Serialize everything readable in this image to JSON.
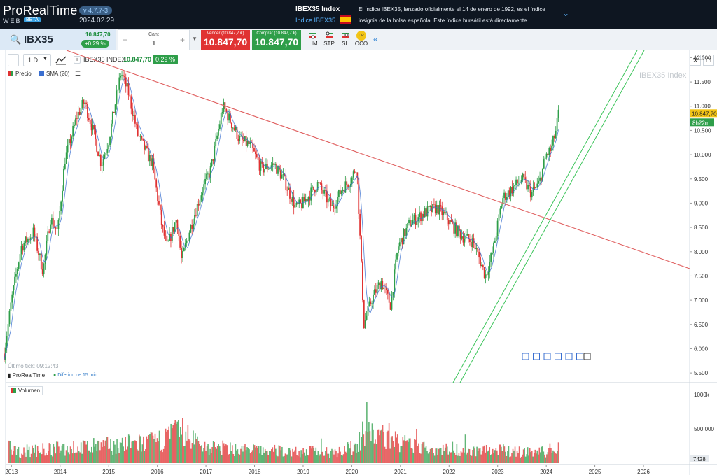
{
  "header": {
    "app_name": "ProRealTime",
    "app_sub": "WEB",
    "beta": "BETA",
    "version": "v 4.7.7-3",
    "date": "2024.02.29",
    "index_title": "IBEX35 Index",
    "index_sub": "Índice IBEX35",
    "description": "El Índice IBEX35, lanzado oficialmente el 14 de enero de 1992, es el índice insignia de la bolsa española. Este índice bursátil está directamente..."
  },
  "trade": {
    "symbol": "IBX35",
    "price": "10.847,70",
    "change": "+0,29 %",
    "qty_label": "Cant",
    "qty_value": "1",
    "qty_minus": "−",
    "qty_plus": "+",
    "sell_label": "Vender (10.847,7 €)",
    "sell_value": "10.847,70",
    "buy_label": "Comprar (10.847,7 €)",
    "buy_value": "10.847,70",
    "order_types": [
      "LIM",
      "STP",
      "SL",
      "OCO"
    ],
    "oco_badge": "OR"
  },
  "toolbar": {
    "timeframe": "1 D",
    "instrument": "IBEX35 INDEX",
    "inst_price": "10.847,70",
    "inst_change": "0.29 %"
  },
  "legend": {
    "price": "Precio",
    "sma": "SMA (20)",
    "volume": "Volumen"
  },
  "watermark": "IBEX35 Index",
  "footer": {
    "last_tick": "Último tick: 09:12:43",
    "brand": "ProRealTime",
    "delay": "Diferido de 15 min"
  },
  "chart_data": {
    "type": "candlestick",
    "x_axis": [
      "2013",
      "2014",
      "2015",
      "2016",
      "2017",
      "2018",
      "2019",
      "2020",
      "2021",
      "2022",
      "2023",
      "2024",
      "2025",
      "2026"
    ],
    "y_ticks": [
      "12.000",
      "11.500",
      "11.000",
      "10.500",
      "10.000",
      "9.500",
      "9.000",
      "8.500",
      "8.000",
      "7.500",
      "7.000",
      "6.500",
      "6.000",
      "5.500"
    ],
    "ylim": [
      5300,
      12150
    ],
    "last_price_label": "10.847,70",
    "countdown_label": "8h22m",
    "volume_ticks": [
      "1000k",
      "500.000"
    ],
    "volume_last": "7428",
    "price_path": [
      [
        2012.85,
        5900
      ],
      [
        2013.0,
        7000
      ],
      [
        2013.2,
        8100
      ],
      [
        2013.45,
        8400
      ],
      [
        2013.65,
        7600
      ],
      [
        2013.8,
        8700
      ],
      [
        2013.95,
        8400
      ],
      [
        2014.1,
        9900
      ],
      [
        2014.35,
        10800
      ],
      [
        2014.5,
        11100
      ],
      [
        2014.65,
        10600
      ],
      [
        2014.85,
        9800
      ],
      [
        2015.0,
        10300
      ],
      [
        2015.25,
        11700
      ],
      [
        2015.4,
        11300
      ],
      [
        2015.6,
        10400
      ],
      [
        2015.8,
        10000
      ],
      [
        2015.9,
        9800
      ],
      [
        2016.1,
        8500
      ],
      [
        2016.2,
        8100
      ],
      [
        2016.4,
        8700
      ],
      [
        2016.5,
        7800
      ],
      [
        2016.65,
        8400
      ],
      [
        2016.9,
        9200
      ],
      [
        2017.1,
        9700
      ],
      [
        2017.35,
        11000
      ],
      [
        2017.5,
        10700
      ],
      [
        2017.7,
        10300
      ],
      [
        2017.9,
        10200
      ],
      [
        2018.15,
        9700
      ],
      [
        2018.4,
        9800
      ],
      [
        2018.6,
        9500
      ],
      [
        2018.85,
        8900
      ],
      [
        2019.0,
        9000
      ],
      [
        2019.3,
        9400
      ],
      [
        2019.6,
        8900
      ],
      [
        2019.8,
        9300
      ],
      [
        2020.0,
        9500
      ],
      [
        2020.1,
        9800
      ],
      [
        2020.25,
        6500
      ],
      [
        2020.4,
        7000
      ],
      [
        2020.6,
        7400
      ],
      [
        2020.8,
        6900
      ],
      [
        2020.95,
        8100
      ],
      [
        2021.2,
        8600
      ],
      [
        2021.5,
        8800
      ],
      [
        2021.75,
        8900
      ],
      [
        2021.95,
        8700
      ],
      [
        2022.1,
        8500
      ],
      [
        2022.3,
        8300
      ],
      [
        2022.5,
        8200
      ],
      [
        2022.75,
        7500
      ],
      [
        2022.9,
        8000
      ],
      [
        2023.1,
        9100
      ],
      [
        2023.3,
        9300
      ],
      [
        2023.5,
        9500
      ],
      [
        2023.7,
        9200
      ],
      [
        2023.85,
        9400
      ],
      [
        2024.0,
        10000
      ],
      [
        2024.1,
        10100
      ],
      [
        2024.2,
        10500
      ],
      [
        2024.25,
        10850
      ]
    ],
    "volume": [
      [
        2013.0,
        0.35
      ],
      [
        2013.5,
        0.4
      ],
      [
        2014.0,
        0.45
      ],
      [
        2014.5,
        0.5
      ],
      [
        2015.0,
        0.55
      ],
      [
        2015.5,
        0.6
      ],
      [
        2016.0,
        0.65
      ],
      [
        2016.45,
        1.0
      ],
      [
        2017.0,
        0.5
      ],
      [
        2017.5,
        0.45
      ],
      [
        2018.0,
        0.4
      ],
      [
        2018.5,
        0.38
      ],
      [
        2019.0,
        0.36
      ],
      [
        2019.5,
        0.36
      ],
      [
        2020.0,
        0.45
      ],
      [
        2020.25,
        0.9
      ],
      [
        2020.8,
        0.85
      ],
      [
        2021.0,
        0.6
      ],
      [
        2021.5,
        0.45
      ],
      [
        2022.0,
        0.45
      ],
      [
        2022.5,
        0.4
      ],
      [
        2023.0,
        0.4
      ],
      [
        2023.5,
        0.35
      ],
      [
        2024.0,
        0.35
      ],
      [
        2024.2,
        0.5
      ]
    ]
  },
  "colors": {
    "up": "#2e9e49",
    "down": "#e03232",
    "sma": "#3a6fd0",
    "trend_down": "#e06060",
    "channel": "#3cc45a",
    "price_tag": "#f2c416",
    "countdown_tag": "#2e9e49"
  }
}
